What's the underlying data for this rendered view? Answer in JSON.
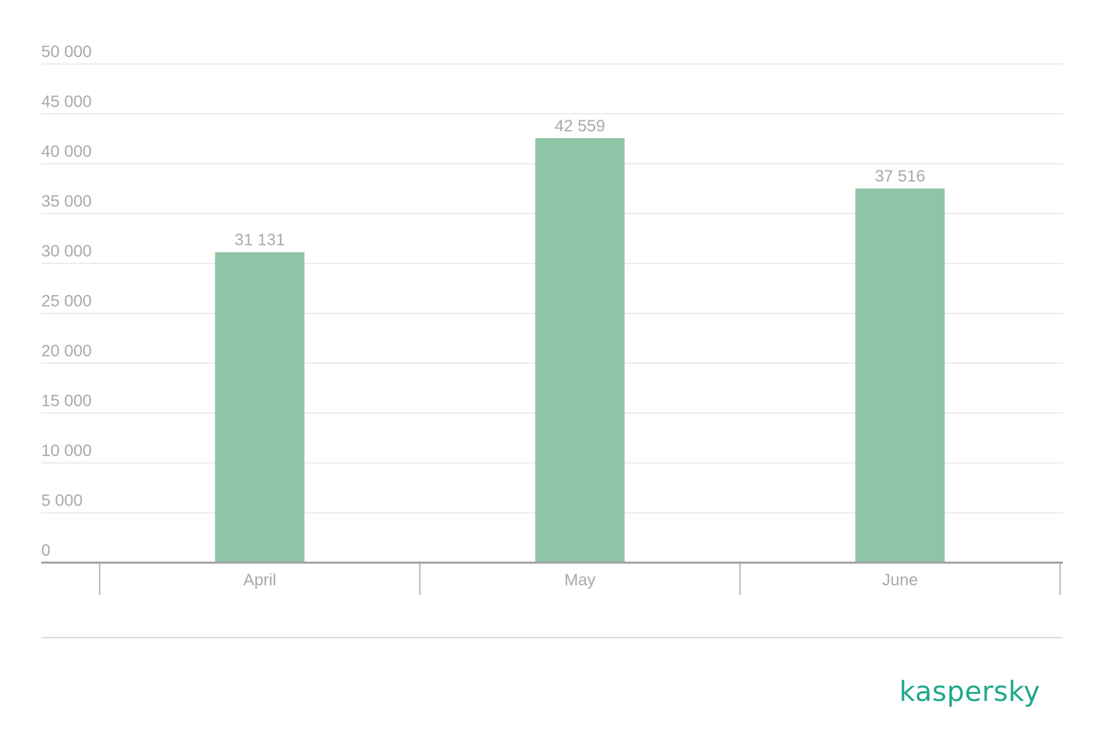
{
  "chart_data": {
    "type": "bar",
    "categories": [
      "April",
      "May",
      "June"
    ],
    "values": [
      31131,
      42559,
      37516
    ],
    "value_labels": [
      "31 131",
      "42 559",
      "37 516"
    ],
    "ylim": [
      0,
      50000
    ],
    "yticks": [
      0,
      5000,
      10000,
      15000,
      20000,
      25000,
      30000,
      35000,
      40000,
      45000,
      50000
    ],
    "ytick_labels": [
      "0",
      "5 000",
      "10 000",
      "15 000",
      "20 000",
      "25 000",
      "30 000",
      "35 000",
      "40 000",
      "45 000",
      "50 000"
    ],
    "title": "",
    "xlabel": "",
    "ylabel": "",
    "grid": true,
    "colors": {
      "bar": "#8fc4a7",
      "text": "#a9a9a9",
      "grid": "#e6e6e6",
      "axis": "#a0a0a0"
    }
  },
  "brand": {
    "logo_text": "kaspersky",
    "color": "#1fa88a"
  }
}
